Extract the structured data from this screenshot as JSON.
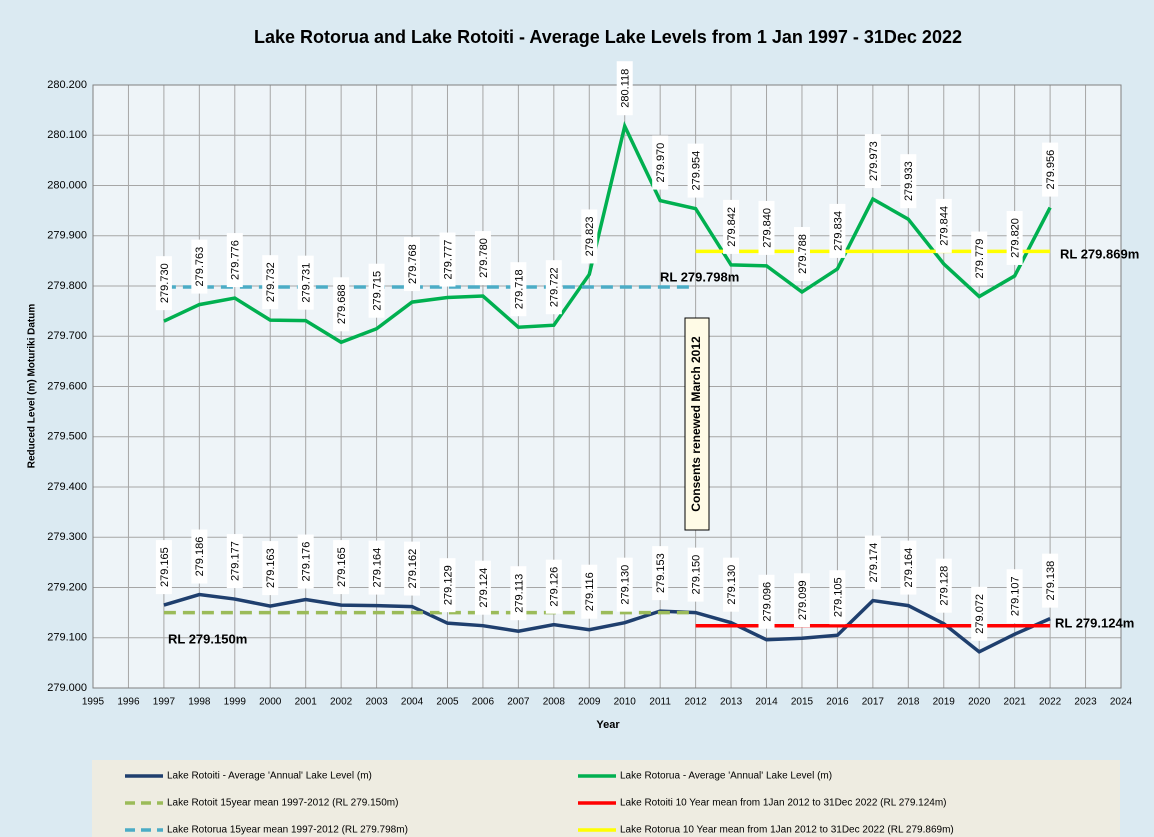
{
  "chart_data": {
    "type": "line",
    "title": "Lake Rotorua and Lake Rotoiti  - Average Lake Levels  from 1 Jan 1997 - 31Dec 2022",
    "xlabel": "Year",
    "ylabel": "Reduced Level (m) Moturiki Datum",
    "x": [
      1997,
      1998,
      1999,
      2000,
      2001,
      2002,
      2003,
      2004,
      2005,
      2006,
      2007,
      2008,
      2009,
      2010,
      2011,
      2012,
      2013,
      2014,
      2015,
      2016,
      2017,
      2018,
      2019,
      2020,
      2021,
      2022
    ],
    "series": [
      {
        "name": "Lake Rotoiti - Average 'Annual' Lake Level (m)",
        "color": "#1f3f6e",
        "values": [
          279.165,
          279.186,
          279.177,
          279.163,
          279.176,
          279.165,
          279.164,
          279.162,
          279.129,
          279.124,
          279.113,
          279.126,
          279.116,
          279.13,
          279.153,
          279.15,
          279.13,
          279.096,
          279.099,
          279.105,
          279.174,
          279.164,
          279.128,
          279.072,
          279.107,
          279.138
        ],
        "value_labels": [
          "279.165",
          "279.186",
          "279.177",
          "279.163",
          "279.176",
          "279.165",
          "279.164",
          "279.162",
          "279.129",
          "279.124",
          "279.113",
          "279.126",
          "279.116",
          "279.130",
          "279.153",
          "279.150",
          "279.130",
          "279.096",
          "279.099",
          "279.105",
          "279.174",
          "279.164",
          "279.128",
          "279.072",
          "279.107",
          "279.138"
        ]
      },
      {
        "name": "Lake Rotorua - Average 'Annual' Lake Level (m)",
        "color": "#00b050",
        "values": [
          279.73,
          279.763,
          279.776,
          279.732,
          279.731,
          279.688,
          279.715,
          279.768,
          279.777,
          279.78,
          279.718,
          279.722,
          279.823,
          280.118,
          279.97,
          279.954,
          279.842,
          279.84,
          279.788,
          279.834,
          279.973,
          279.933,
          279.844,
          279.779,
          279.82,
          279.956
        ],
        "value_labels": [
          "279.730",
          "279.763",
          "279.776",
          "279.732",
          "279.731",
          "279.688",
          "279.715",
          "279.768",
          "279.777",
          "279.780",
          "279.718",
          "279.722",
          "279.823",
          "280.118",
          "279.970",
          "279.954",
          "279.842",
          "279.840",
          "279.788",
          "279.834",
          "279.973",
          "279.933",
          "279.844",
          "279.779",
          "279.820",
          "279.956"
        ]
      },
      {
        "name": "Lake Rotoit 15year mean 1997-2012 (RL 279.150m)",
        "color": "#9bbb59",
        "dash": true,
        "x": [
          1997,
          2012
        ],
        "values": [
          279.15,
          279.15
        ]
      },
      {
        "name": "Lake Rotoiti 10 Year mean from 1Jan 2012 to 31Dec 2022 (RL 279.124m)",
        "color": "#ff0000",
        "dash": false,
        "x": [
          2012,
          2022
        ],
        "values": [
          279.124,
          279.124
        ]
      },
      {
        "name": "Lake Rotorua 15year mean 1997-2012 (RL 279.798m)",
        "color": "#4bacc6",
        "dash": true,
        "x": [
          1997,
          2012
        ],
        "values": [
          279.798,
          279.798
        ]
      },
      {
        "name": "Lake Rotorua 10 Year mean from 1Jan 2012 to 31Dec 2022 (RL 279.869m)",
        "color": "#ffff00",
        "dash": false,
        "x": [
          2012,
          2022
        ],
        "values": [
          279.869,
          279.869
        ]
      }
    ],
    "annotations": [
      "RL 279.798m",
      "RL 279.869m",
      "RL 279.150m",
      "RL 279.124m",
      "Consents  renewed  March 2012"
    ],
    "xlim": [
      1995,
      2024
    ],
    "xticks": [
      1995,
      1996,
      1997,
      1998,
      1999,
      2000,
      2001,
      2002,
      2003,
      2004,
      2005,
      2006,
      2007,
      2008,
      2009,
      2010,
      2011,
      2012,
      2013,
      2014,
      2015,
      2016,
      2017,
      2018,
      2019,
      2020,
      2021,
      2022,
      2023,
      2024
    ],
    "ylim": [
      279.0,
      280.2
    ],
    "yticks": [
      {
        "value": 279.0,
        "label": "279.000"
      },
      {
        "value": 279.1,
        "label": "279.100"
      },
      {
        "value": 279.2,
        "label": "279.200"
      },
      {
        "value": 279.3,
        "label": "279.300"
      },
      {
        "value": 279.4,
        "label": "279.400"
      },
      {
        "value": 279.5,
        "label": "279.500"
      },
      {
        "value": 279.6,
        "label": "279.600"
      },
      {
        "value": 279.7,
        "label": "279.700"
      },
      {
        "value": 279.8,
        "label": "279.800"
      },
      {
        "value": 279.9,
        "label": "279.900"
      },
      {
        "value": 280.0,
        "label": "280.000"
      },
      {
        "value": 280.1,
        "label": "280.100"
      },
      {
        "value": 280.2,
        "label": "280.200"
      }
    ],
    "grid": true
  }
}
